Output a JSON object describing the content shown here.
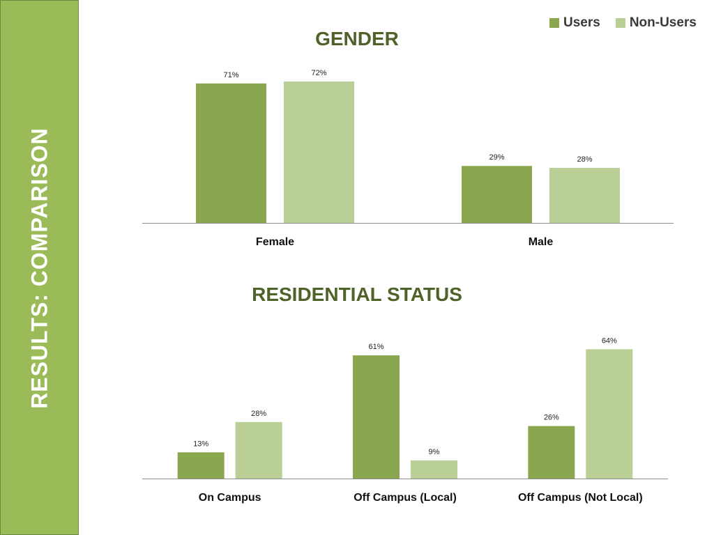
{
  "sidebar": {
    "title": "RESULTS: COMPARISON"
  },
  "legend": [
    {
      "label": "Users",
      "color": "#8aa74f"
    },
    {
      "label": "Non-Users",
      "color": "#bacf96"
    }
  ],
  "chart_data": [
    {
      "type": "bar",
      "title": "GENDER",
      "categories": [
        "Female",
        "Male"
      ],
      "series": [
        {
          "name": "Users",
          "values": [
            71,
            29
          ],
          "labels": [
            "71%",
            "29%"
          ]
        },
        {
          "name": "Non-Users",
          "values": [
            72,
            28
          ],
          "labels": [
            "72%",
            "28%"
          ]
        }
      ],
      "ylim": [
        0,
        100
      ],
      "grid": false,
      "legend_position": "top-right"
    },
    {
      "type": "bar",
      "title": "RESIDENTIAL STATUS",
      "categories": [
        "On Campus",
        "Off Campus (Local)",
        "Off Campus (Not Local)"
      ],
      "series": [
        {
          "name": "Users",
          "values": [
            13,
            61,
            26
          ],
          "labels": [
            "13%",
            "61%",
            "26%"
          ]
        },
        {
          "name": "Non-Users",
          "values": [
            28,
            9,
            64
          ],
          "labels": [
            "28%",
            "9%",
            "64%"
          ]
        }
      ],
      "ylim": [
        0,
        100
      ],
      "grid": false,
      "legend_position": "top-right"
    }
  ]
}
